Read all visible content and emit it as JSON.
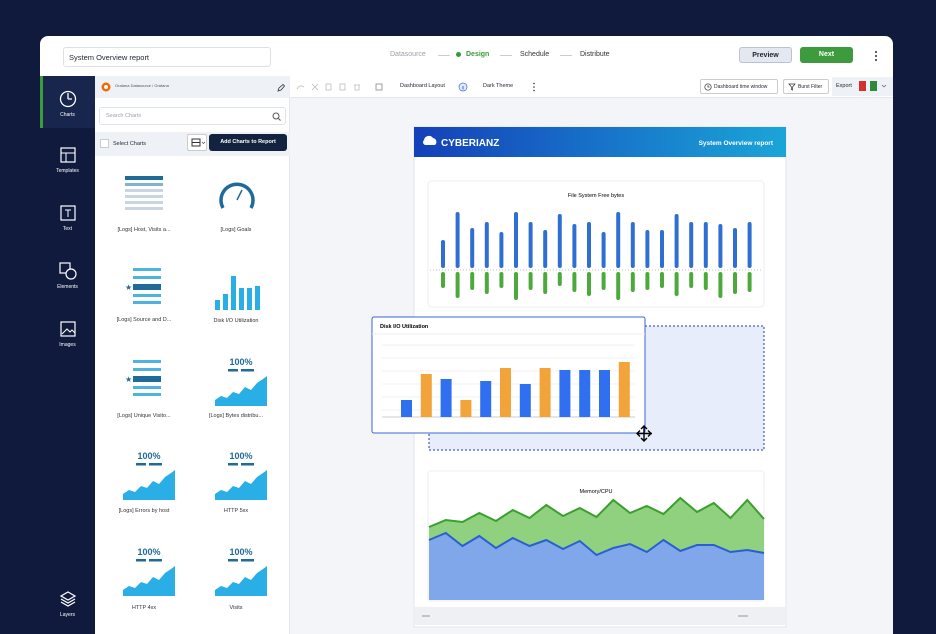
{
  "topbar": {
    "report_name": "System Overview report",
    "steps": [
      "Datasource",
      "Design",
      "Schedule",
      "Distribute"
    ],
    "buttons": [
      "Preview",
      "Next"
    ]
  },
  "nav": {
    "items": [
      "Charts",
      "Templates",
      "Text",
      "Elements",
      "Images",
      "Layers"
    ]
  },
  "panel": {
    "source": "Grafana Datasource / Grafana",
    "search_placeholder": "Search Charts",
    "select_all": "Select Charts",
    "add_button": "Add Charts to Report",
    "charts": [
      {
        "label": "[Logs] Host, Visits a..."
      },
      {
        "label": "[Logs] Goals"
      },
      {
        "label": "[Logs] Source and D..."
      },
      {
        "label": "Disk I/O Utilization"
      },
      {
        "label": "[Logs] Unique Visito..."
      },
      {
        "label": "[Logs] Bytes distribu...",
        "badge": "100%"
      },
      {
        "label": "[Logs] Errors by host",
        "badge": "100%"
      },
      {
        "label": "HTTP 5xx",
        "badge": "100%"
      },
      {
        "label": "HTTP 4xx",
        "badge": "100%"
      },
      {
        "label": "Visits",
        "badge": "100%"
      }
    ]
  },
  "toolbar": {
    "layout": "Dashboard Layout",
    "theme": "Dark Theme",
    "time_window": "Dashboard time window",
    "burst_filter": "Burst Filter",
    "export": "Export"
  },
  "report": {
    "brand": "CYBERIANZ",
    "title": "System Overview report",
    "widgets": [
      {
        "title": "File System Free bytes",
        "series": [
          {
            "color": "#2f6fd1",
            "values": [
              28,
              56,
              40,
              46,
              36,
              56,
              46,
              38,
              54,
              44,
              46,
              36,
              56,
              46,
              38,
              38,
              54,
              46,
              46,
              44,
              40,
              46
            ]
          },
          {
            "color": "#4caa3c",
            "values": [
              16,
              26,
              18,
              22,
              16,
              28,
              18,
              22,
              14,
              20,
              24,
              18,
              28,
              20,
              18,
              16,
              24,
              16,
              18,
              26,
              22,
              20
            ]
          }
        ]
      },
      {
        "title": "Disk I/O Utilization",
        "values": [
          17,
          43,
          38,
          17,
          36,
          49,
          33,
          49,
          47,
          47,
          47,
          55
        ],
        "colors": [
          "#2f6ff0",
          "#f2a43a",
          "#2f6ff0",
          "#f2a43a",
          "#2f6ff0",
          "#f2a43a",
          "#2f6ff0",
          "#f2a43a",
          "#2f6ff0",
          "#2f6ff0",
          "#2f6ff0",
          "#f2a43a"
        ]
      },
      {
        "title": "Memory/CPU",
        "series": [
          {
            "color": "#3a9f2e",
            "values": [
              73,
              80,
              78,
              87,
              79,
              90,
              82,
              95,
              84,
              92,
              83,
              100,
              87,
              94,
              86,
              102,
              88,
              97,
              82,
              100,
              81
            ]
          },
          {
            "color": "#2a5fd1",
            "values": [
              60,
              67,
              54,
              64,
              52,
              62,
              54,
              60,
              51,
              59,
              45,
              52,
              56,
              48,
              60,
              49,
              55,
              55,
              48,
              50,
              47
            ]
          }
        ]
      }
    ]
  }
}
